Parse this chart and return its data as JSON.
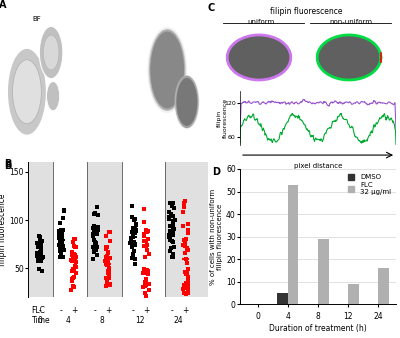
{
  "panel_B": {
    "ylabel": "filipin fluorescence",
    "ylim": [
      20,
      160
    ],
    "yticks": [
      50,
      100,
      150
    ],
    "bg_color_light": "#e8e8e8",
    "bg_color_white": "#ffffff"
  },
  "panel_D": {
    "time_points": [
      0,
      4,
      8,
      12,
      24
    ],
    "dmso_values": [
      0,
      5,
      0,
      0,
      0
    ],
    "flc_values": [
      0,
      53,
      29,
      9,
      16
    ],
    "ylabel": "% of cells with non-uniform\nfilipin fluorescence",
    "xlabel": "Duration of treatment (h)",
    "ylim": [
      0,
      60
    ],
    "yticks": [
      0,
      10,
      20,
      30,
      40,
      50,
      60
    ],
    "bar_width": 0.35,
    "dmso_color": "#333333",
    "flc_color": "#b0b0b0",
    "legend_dmso": "DMSO",
    "legend_flc": "FLC\n32 μg/ml"
  },
  "panel_A_colors": [
    "#b0b0b0",
    "#2a2a2a",
    "#606060"
  ],
  "panel_C": {
    "uniform_color": "#cc77ff",
    "nonuniform_color": "#00cc44",
    "line_yticks": [
      60,
      120
    ],
    "line_ylim": [
      45,
      140
    ]
  }
}
